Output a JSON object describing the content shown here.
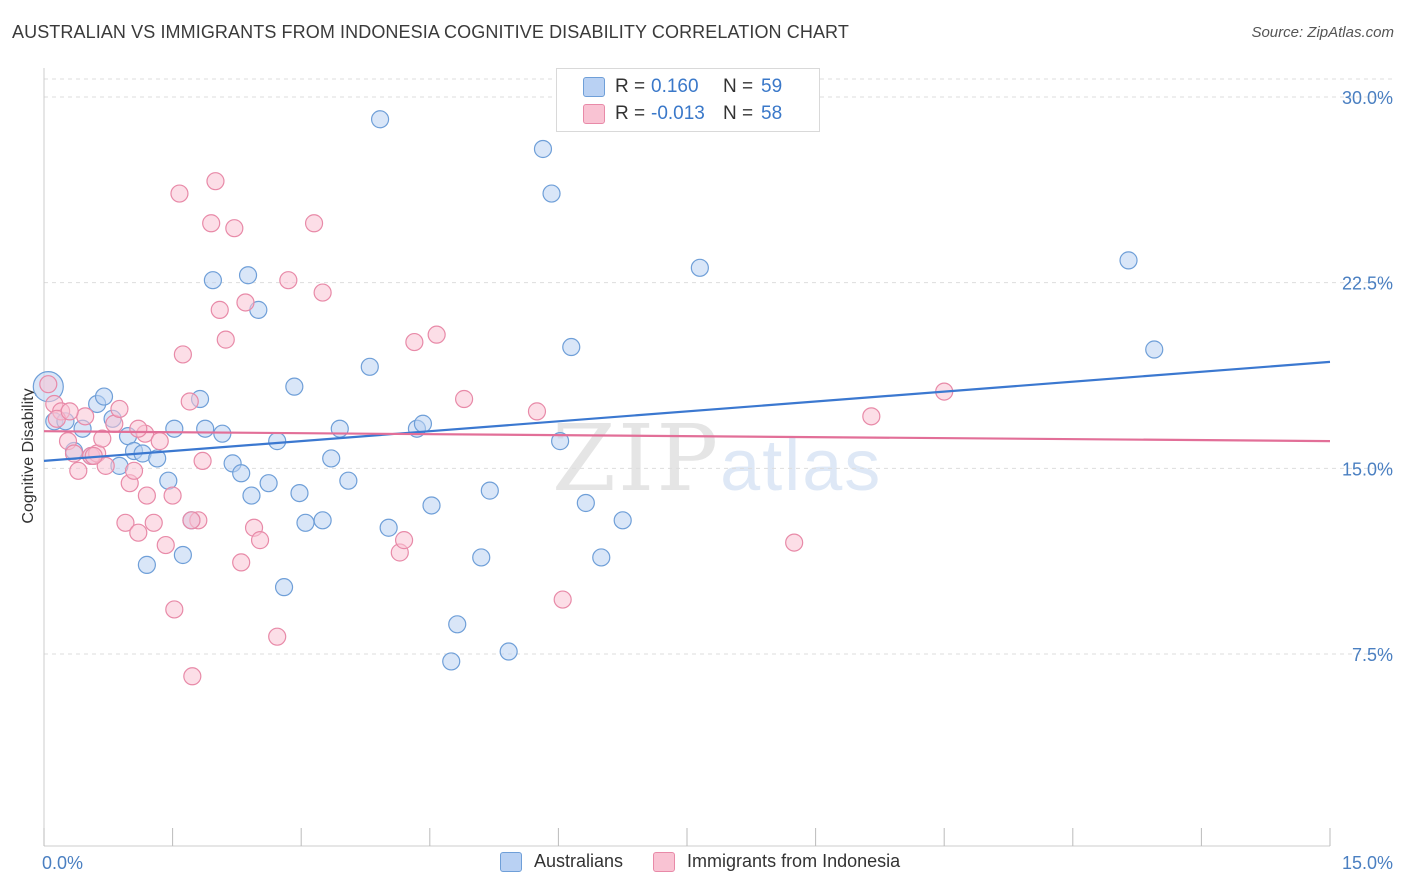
{
  "title": "AUSTRALIAN VS IMMIGRANTS FROM INDONESIA COGNITIVE DISABILITY CORRELATION CHART",
  "source": "Source: ZipAtlas.com",
  "watermark": {
    "zip": "ZIP",
    "atlas": "atlas"
  },
  "legend_top": {
    "rows": [
      {
        "r_label": "R =",
        "r_value": "0.160",
        "n_label": "N =",
        "n_value": "59"
      },
      {
        "r_label": "R =",
        "r_value": "-0.013",
        "n_label": "N =",
        "n_value": "58"
      }
    ]
  },
  "legend_bottom": [
    {
      "label": "Australians"
    },
    {
      "label": "Immigrants from Indonesia"
    }
  ],
  "colors": {
    "blue_fill": "#b9d1f3",
    "blue_stroke": "#6f9fd8",
    "blue_line": "#3b78d0",
    "pink_fill": "#f9c3d3",
    "pink_stroke": "#e88aa8",
    "pink_line": "#e26f98",
    "grid": "#dddddd",
    "axis_text": "#4a7fc1"
  },
  "chart_data": {
    "type": "scatter",
    "title": "AUSTRALIAN VS IMMIGRANTS FROM INDONESIA COGNITIVE DISABILITY CORRELATION CHART",
    "xlabel": "",
    "ylabel": "Cognitive Disability",
    "xlim": [
      0,
      15
    ],
    "ylim": [
      0,
      31
    ],
    "x_tick_labels": [
      "0.0%",
      "15.0%"
    ],
    "y_ticks": [
      7.5,
      15.0,
      22.5,
      30.0
    ],
    "y_tick_labels": [
      "7.5%",
      "15.0%",
      "22.5%",
      "30.0%"
    ],
    "series": [
      {
        "name": "Australians",
        "color": "blue",
        "trend": {
          "x": [
            0,
            15
          ],
          "y": [
            15.3,
            19.3
          ]
        },
        "points": [
          {
            "x": 0.05,
            "y": 18.3,
            "big": true
          },
          {
            "x": 0.12,
            "y": 16.9
          },
          {
            "x": 0.25,
            "y": 16.9
          },
          {
            "x": 0.35,
            "y": 15.7
          },
          {
            "x": 0.45,
            "y": 16.6
          },
          {
            "x": 0.55,
            "y": 15.5
          },
          {
            "x": 0.62,
            "y": 17.6
          },
          {
            "x": 0.7,
            "y": 17.9
          },
          {
            "x": 0.8,
            "y": 17.0
          },
          {
            "x": 0.88,
            "y": 15.1
          },
          {
            "x": 0.98,
            "y": 16.3
          },
          {
            "x": 1.05,
            "y": 15.7
          },
          {
            "x": 1.15,
            "y": 15.6
          },
          {
            "x": 1.2,
            "y": 11.1
          },
          {
            "x": 1.32,
            "y": 15.4
          },
          {
            "x": 1.45,
            "y": 14.5
          },
          {
            "x": 1.52,
            "y": 16.6
          },
          {
            "x": 1.62,
            "y": 11.5
          },
          {
            "x": 1.72,
            "y": 12.9
          },
          {
            "x": 1.82,
            "y": 17.8
          },
          {
            "x": 1.88,
            "y": 16.6
          },
          {
            "x": 1.97,
            "y": 22.6
          },
          {
            "x": 2.08,
            "y": 16.4
          },
          {
            "x": 2.2,
            "y": 15.2
          },
          {
            "x": 2.3,
            "y": 14.8
          },
          {
            "x": 2.38,
            "y": 22.8
          },
          {
            "x": 2.42,
            "y": 13.9
          },
          {
            "x": 2.5,
            "y": 21.4
          },
          {
            "x": 2.62,
            "y": 14.4
          },
          {
            "x": 2.72,
            "y": 16.1
          },
          {
            "x": 2.8,
            "y": 10.2
          },
          {
            "x": 2.92,
            "y": 18.3
          },
          {
            "x": 2.98,
            "y": 14.0
          },
          {
            "x": 3.05,
            "y": 12.8
          },
          {
            "x": 3.25,
            "y": 12.9
          },
          {
            "x": 3.35,
            "y": 15.4
          },
          {
            "x": 3.45,
            "y": 16.6
          },
          {
            "x": 3.55,
            "y": 14.5
          },
          {
            "x": 3.8,
            "y": 19.1
          },
          {
            "x": 3.92,
            "y": 29.1
          },
          {
            "x": 4.02,
            "y": 12.6
          },
          {
            "x": 4.35,
            "y": 16.6
          },
          {
            "x": 4.42,
            "y": 16.8
          },
          {
            "x": 4.52,
            "y": 13.5
          },
          {
            "x": 4.75,
            "y": 7.2
          },
          {
            "x": 4.82,
            "y": 8.7
          },
          {
            "x": 5.1,
            "y": 11.4
          },
          {
            "x": 5.2,
            "y": 14.1
          },
          {
            "x": 5.42,
            "y": 7.6
          },
          {
            "x": 5.82,
            "y": 27.9
          },
          {
            "x": 5.92,
            "y": 26.1
          },
          {
            "x": 6.02,
            "y": 16.1
          },
          {
            "x": 6.15,
            "y": 19.9
          },
          {
            "x": 6.32,
            "y": 13.6
          },
          {
            "x": 6.5,
            "y": 11.4
          },
          {
            "x": 6.75,
            "y": 12.9
          },
          {
            "x": 7.65,
            "y": 23.1
          },
          {
            "x": 12.65,
            "y": 23.4
          },
          {
            "x": 12.95,
            "y": 19.8
          }
        ]
      },
      {
        "name": "Immigrants from Indonesia",
        "color": "pink",
        "trend": {
          "x": [
            0,
            15
          ],
          "y": [
            16.5,
            16.1
          ]
        },
        "points": [
          {
            "x": 0.05,
            "y": 18.4
          },
          {
            "x": 0.12,
            "y": 17.6
          },
          {
            "x": 0.2,
            "y": 17.3
          },
          {
            "x": 0.28,
            "y": 16.1
          },
          {
            "x": 0.35,
            "y": 15.6
          },
          {
            "x": 0.4,
            "y": 14.9
          },
          {
            "x": 0.48,
            "y": 17.1
          },
          {
            "x": 0.55,
            "y": 15.5
          },
          {
            "x": 0.62,
            "y": 15.6
          },
          {
            "x": 0.68,
            "y": 16.2
          },
          {
            "x": 0.72,
            "y": 15.1
          },
          {
            "x": 0.82,
            "y": 16.8
          },
          {
            "x": 0.88,
            "y": 17.4
          },
          {
            "x": 0.95,
            "y": 12.8
          },
          {
            "x": 1.0,
            "y": 14.4
          },
          {
            "x": 1.05,
            "y": 14.9
          },
          {
            "x": 1.1,
            "y": 12.4
          },
          {
            "x": 1.18,
            "y": 16.4
          },
          {
            "x": 1.2,
            "y": 13.9
          },
          {
            "x": 1.28,
            "y": 12.8
          },
          {
            "x": 1.35,
            "y": 16.1
          },
          {
            "x": 1.42,
            "y": 11.9
          },
          {
            "x": 1.5,
            "y": 13.9
          },
          {
            "x": 1.52,
            "y": 9.3
          },
          {
            "x": 1.58,
            "y": 26.1
          },
          {
            "x": 1.62,
            "y": 19.6
          },
          {
            "x": 1.7,
            "y": 17.7
          },
          {
            "x": 1.73,
            "y": 6.6
          },
          {
            "x": 1.8,
            "y": 12.9
          },
          {
            "x": 1.85,
            "y": 15.3
          },
          {
            "x": 1.95,
            "y": 24.9
          },
          {
            "x": 2.0,
            "y": 26.6
          },
          {
            "x": 2.05,
            "y": 21.4
          },
          {
            "x": 2.12,
            "y": 20.2
          },
          {
            "x": 2.22,
            "y": 24.7
          },
          {
            "x": 2.3,
            "y": 11.2
          },
          {
            "x": 2.35,
            "y": 21.7
          },
          {
            "x": 2.45,
            "y": 12.6
          },
          {
            "x": 2.52,
            "y": 12.1
          },
          {
            "x": 2.72,
            "y": 8.2
          },
          {
            "x": 2.85,
            "y": 22.6
          },
          {
            "x": 3.15,
            "y": 24.9
          },
          {
            "x": 3.25,
            "y": 22.1
          },
          {
            "x": 4.15,
            "y": 11.6
          },
          {
            "x": 4.2,
            "y": 12.1
          },
          {
            "x": 4.32,
            "y": 20.1
          },
          {
            "x": 4.58,
            "y": 20.4
          },
          {
            "x": 4.9,
            "y": 17.8
          },
          {
            "x": 5.75,
            "y": 17.3
          },
          {
            "x": 6.05,
            "y": 9.7
          },
          {
            "x": 8.75,
            "y": 12.0
          },
          {
            "x": 9.65,
            "y": 17.1
          },
          {
            "x": 10.5,
            "y": 18.1
          },
          {
            "x": 0.15,
            "y": 17.0
          },
          {
            "x": 0.58,
            "y": 15.5
          },
          {
            "x": 1.1,
            "y": 16.6
          },
          {
            "x": 1.72,
            "y": 12.9
          },
          {
            "x": 0.3,
            "y": 17.3
          }
        ]
      }
    ]
  }
}
